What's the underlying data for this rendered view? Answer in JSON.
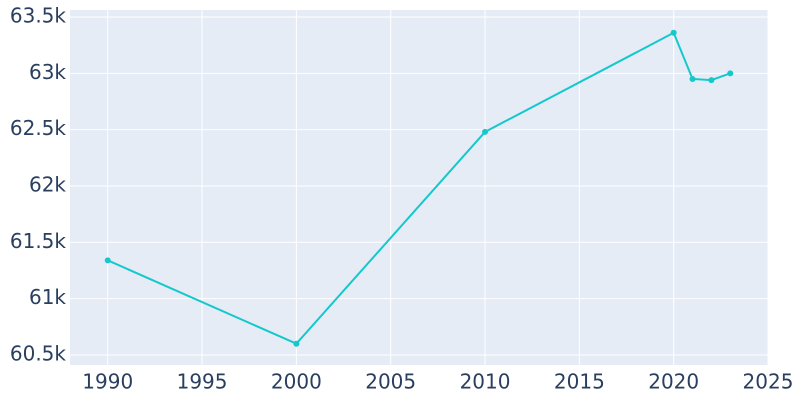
{
  "chart_data": {
    "type": "line",
    "x": [
      1990,
      2000,
      2010,
      2020,
      2021,
      2022,
      2023
    ],
    "series": [
      {
        "color": "#14c8cc",
        "values": [
          61340,
          60600,
          62480,
          63360,
          62950,
          62940,
          63000
        ]
      }
    ],
    "xlim": [
      1988,
      2025
    ],
    "xticks": [
      1990,
      1995,
      2000,
      2005,
      2010,
      2015,
      2020,
      2025
    ],
    "ylim": [
      60411,
      63562
    ],
    "yticks": [
      {
        "value": 60500,
        "label": "60.5k"
      },
      {
        "value": 61000,
        "label": "61k"
      },
      {
        "value": 61500,
        "label": "61.5k"
      },
      {
        "value": 62000,
        "label": "62k"
      },
      {
        "value": 62500,
        "label": "62.5k"
      },
      {
        "value": 63000,
        "label": "63k"
      },
      {
        "value": 63500,
        "label": "63.5k"
      }
    ],
    "grid": true
  }
}
